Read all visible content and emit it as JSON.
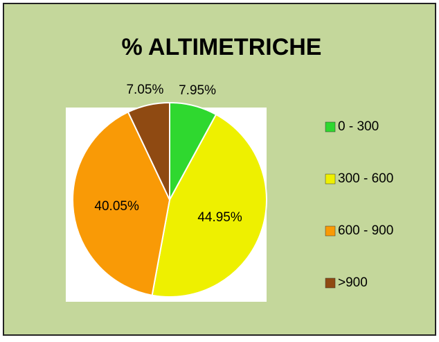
{
  "chart_data": {
    "type": "pie",
    "title": "% ALTIMETRICHE",
    "categories": [
      "0 - 300",
      "300 - 600",
      "600 - 900",
      ">900"
    ],
    "values": [
      7.95,
      44.95,
      40.05,
      7.05
    ],
    "value_labels": [
      "7.95%",
      "44.95%",
      "40.05%",
      "7.05%"
    ],
    "colors": [
      "#2fd82f",
      "#eef000",
      "#f99a06",
      "#8f4a12"
    ],
    "legend": "right"
  }
}
